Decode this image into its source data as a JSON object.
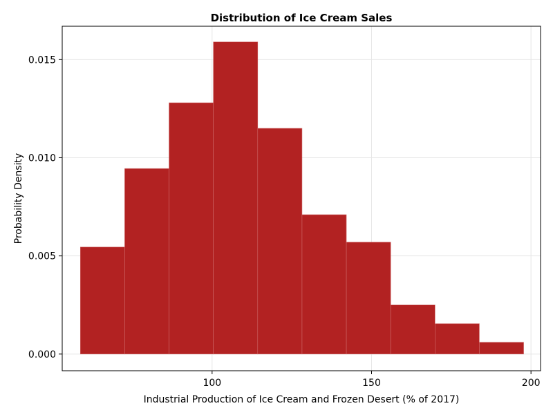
{
  "chart_data": {
    "type": "bar",
    "title": "Distribution of Ice Cream Sales",
    "xlabel": "Industrial Production of Ice Cream and Frozen Desert (% of 2017)",
    "ylabel": "Probability Density",
    "xlim": [
      53,
      203
    ],
    "ylim": [
      -0.00085,
      0.0167
    ],
    "xticks": [
      100,
      150,
      200
    ],
    "xtick_labels": [
      "100",
      "150",
      "200"
    ],
    "yticks": [
      0.0,
      0.005,
      0.01,
      0.015
    ],
    "ytick_labels": [
      "0.000",
      "0.005",
      "0.010",
      "0.015"
    ],
    "grid": true,
    "bar_color": "#b22222",
    "bin_edges": [
      58.7,
      72.6,
      86.5,
      100.4,
      114.3,
      128.2,
      142.1,
      156.0,
      169.9,
      183.8,
      197.7
    ],
    "values": [
      0.00545,
      0.00945,
      0.0128,
      0.0159,
      0.0115,
      0.0071,
      0.0057,
      0.0025,
      0.00155,
      0.0006
    ]
  }
}
